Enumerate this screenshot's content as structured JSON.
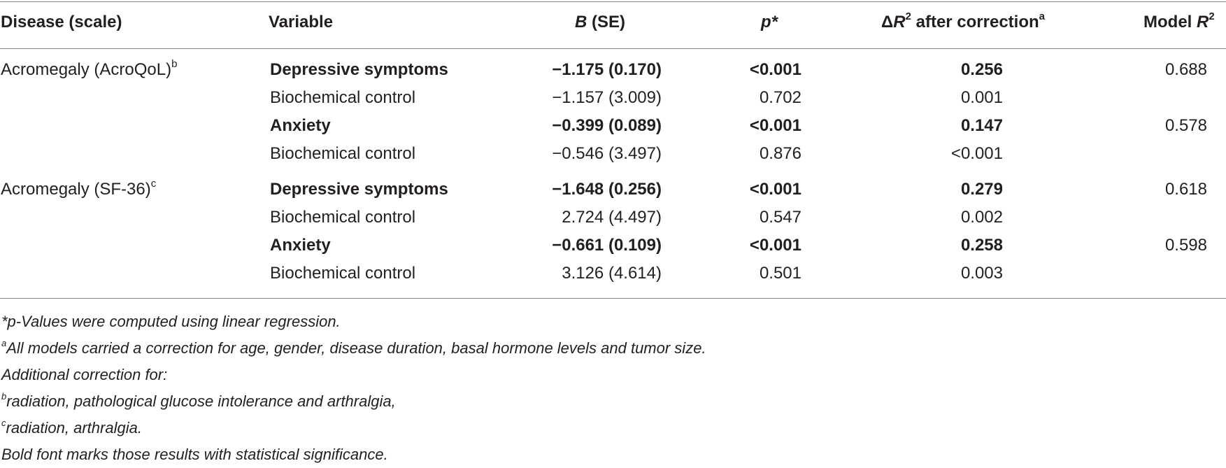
{
  "table": {
    "headers": {
      "disease": "Disease (scale)",
      "variable": "Variable",
      "b_italic": "B",
      "b_rest": " (SE)",
      "p": "p*",
      "dr2_delta": "Δ",
      "dr2_r": "R",
      "dr2_sup": "2",
      "dr2_rest": " after correction",
      "dr2_note": "a",
      "model_pre": "Model ",
      "model_r": "R",
      "model_sup": "2"
    },
    "rows": [
      {
        "disease": "Acromegaly (AcroQoL)",
        "disease_sup": "b",
        "variable": "Depressive symptoms",
        "b": "−1.175 (0.170)",
        "p": "<0.001",
        "dr2": "0.256",
        "model_r2": "0.688",
        "significant": true
      },
      {
        "disease": "",
        "disease_sup": "",
        "variable": "Biochemical control",
        "b": "−1.157 (3.009)",
        "p": "0.702",
        "dr2": "0.001",
        "model_r2": "",
        "significant": false
      },
      {
        "disease": "",
        "disease_sup": "",
        "variable": "Anxiety",
        "b": "−0.399 (0.089)",
        "p": "<0.001",
        "dr2": "0.147",
        "model_r2": "0.578",
        "significant": true
      },
      {
        "disease": "",
        "disease_sup": "",
        "variable": "Biochemical control",
        "b": "−0.546 (3.497)",
        "p": "0.876",
        "dr2": "<0.001",
        "model_r2": "",
        "significant": false
      },
      {
        "disease": "Acromegaly (SF-36)",
        "disease_sup": "c",
        "variable": "Depressive symptoms",
        "b": "−1.648 (0.256)",
        "p": "<0.001",
        "dr2": "0.279",
        "model_r2": "0.618",
        "significant": true
      },
      {
        "disease": "",
        "disease_sup": "",
        "variable": "Biochemical control",
        "b": "2.724 (4.497)",
        "p": "0.547",
        "dr2": "0.002",
        "model_r2": "",
        "significant": false
      },
      {
        "disease": "",
        "disease_sup": "",
        "variable": "Anxiety",
        "b": "−0.661 (0.109)",
        "p": "<0.001",
        "dr2": "0.258",
        "model_r2": "0.598",
        "significant": true
      },
      {
        "disease": "",
        "disease_sup": "",
        "variable": "Biochemical control",
        "b": "3.126 (4.614)",
        "p": "0.501",
        "dr2": "0.003",
        "model_r2": "",
        "significant": false
      }
    ]
  },
  "footnotes": [
    {
      "sup": "",
      "text": "*p-Values were computed using linear regression."
    },
    {
      "sup": "a",
      "text": "All models carried a correction for age, gender, disease duration, basal hormone levels and tumor size."
    },
    {
      "sup": "",
      "text": "Additional correction for:"
    },
    {
      "sup": "b",
      "text": "radiation, pathological glucose intolerance and arthralgia,"
    },
    {
      "sup": "c",
      "text": "radiation, arthralgia."
    },
    {
      "sup": "",
      "text": "Bold font marks those results with statistical significance."
    }
  ]
}
